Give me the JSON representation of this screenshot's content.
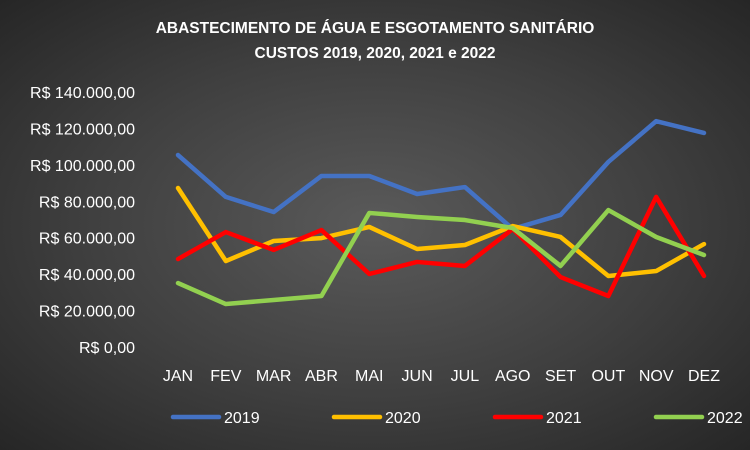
{
  "chart_data": {
    "type": "line",
    "title": "ABASTECIMENTO DE ÁGUA E ESGOTAMENTO SANITÁRIO",
    "subtitle": "CUSTOS 2019, 2020, 2021 e 2022",
    "categories": [
      "JAN",
      "FEV",
      "MAR",
      "ABR",
      "MAI",
      "JUN",
      "JUL",
      "AGO",
      "SET",
      "OUT",
      "NOV",
      "DEZ"
    ],
    "ylim": [
      0,
      140000
    ],
    "yticks": [
      0,
      20000,
      40000,
      60000,
      80000,
      100000,
      120000,
      140000
    ],
    "ytick_labels": [
      "R$ 0,00",
      "R$ 20.000,00",
      "R$ 40.000,00",
      "R$ 60.000,00",
      "R$ 80.000,00",
      "R$ 100.000,00",
      "R$ 120.000,00",
      "R$ 140.000,00"
    ],
    "grid": false,
    "legend": "bottom",
    "series": [
      {
        "name": "2019",
        "color": "#4472C4",
        "values": [
          105400,
          82400,
          74100,
          93900,
          93900,
          84000,
          87800,
          64800,
          72500,
          101600,
          124000,
          117500
        ]
      },
      {
        "name": "2020",
        "color": "#FFC000",
        "values": [
          87300,
          47200,
          58200,
          59800,
          65900,
          53800,
          56000,
          66400,
          60400,
          39000,
          41700,
          56500
        ]
      },
      {
        "name": "2021",
        "color": "#FF0000",
        "values": [
          48300,
          63100,
          53300,
          64200,
          40100,
          46700,
          44500,
          64800,
          38400,
          28000,
          82400,
          39000
        ]
      },
      {
        "name": "2022",
        "color": "#92D050",
        "values": [
          35100,
          23600,
          25800,
          28000,
          73600,
          71400,
          69700,
          65300,
          44500,
          75200,
          60400,
          50500
        ]
      }
    ]
  }
}
